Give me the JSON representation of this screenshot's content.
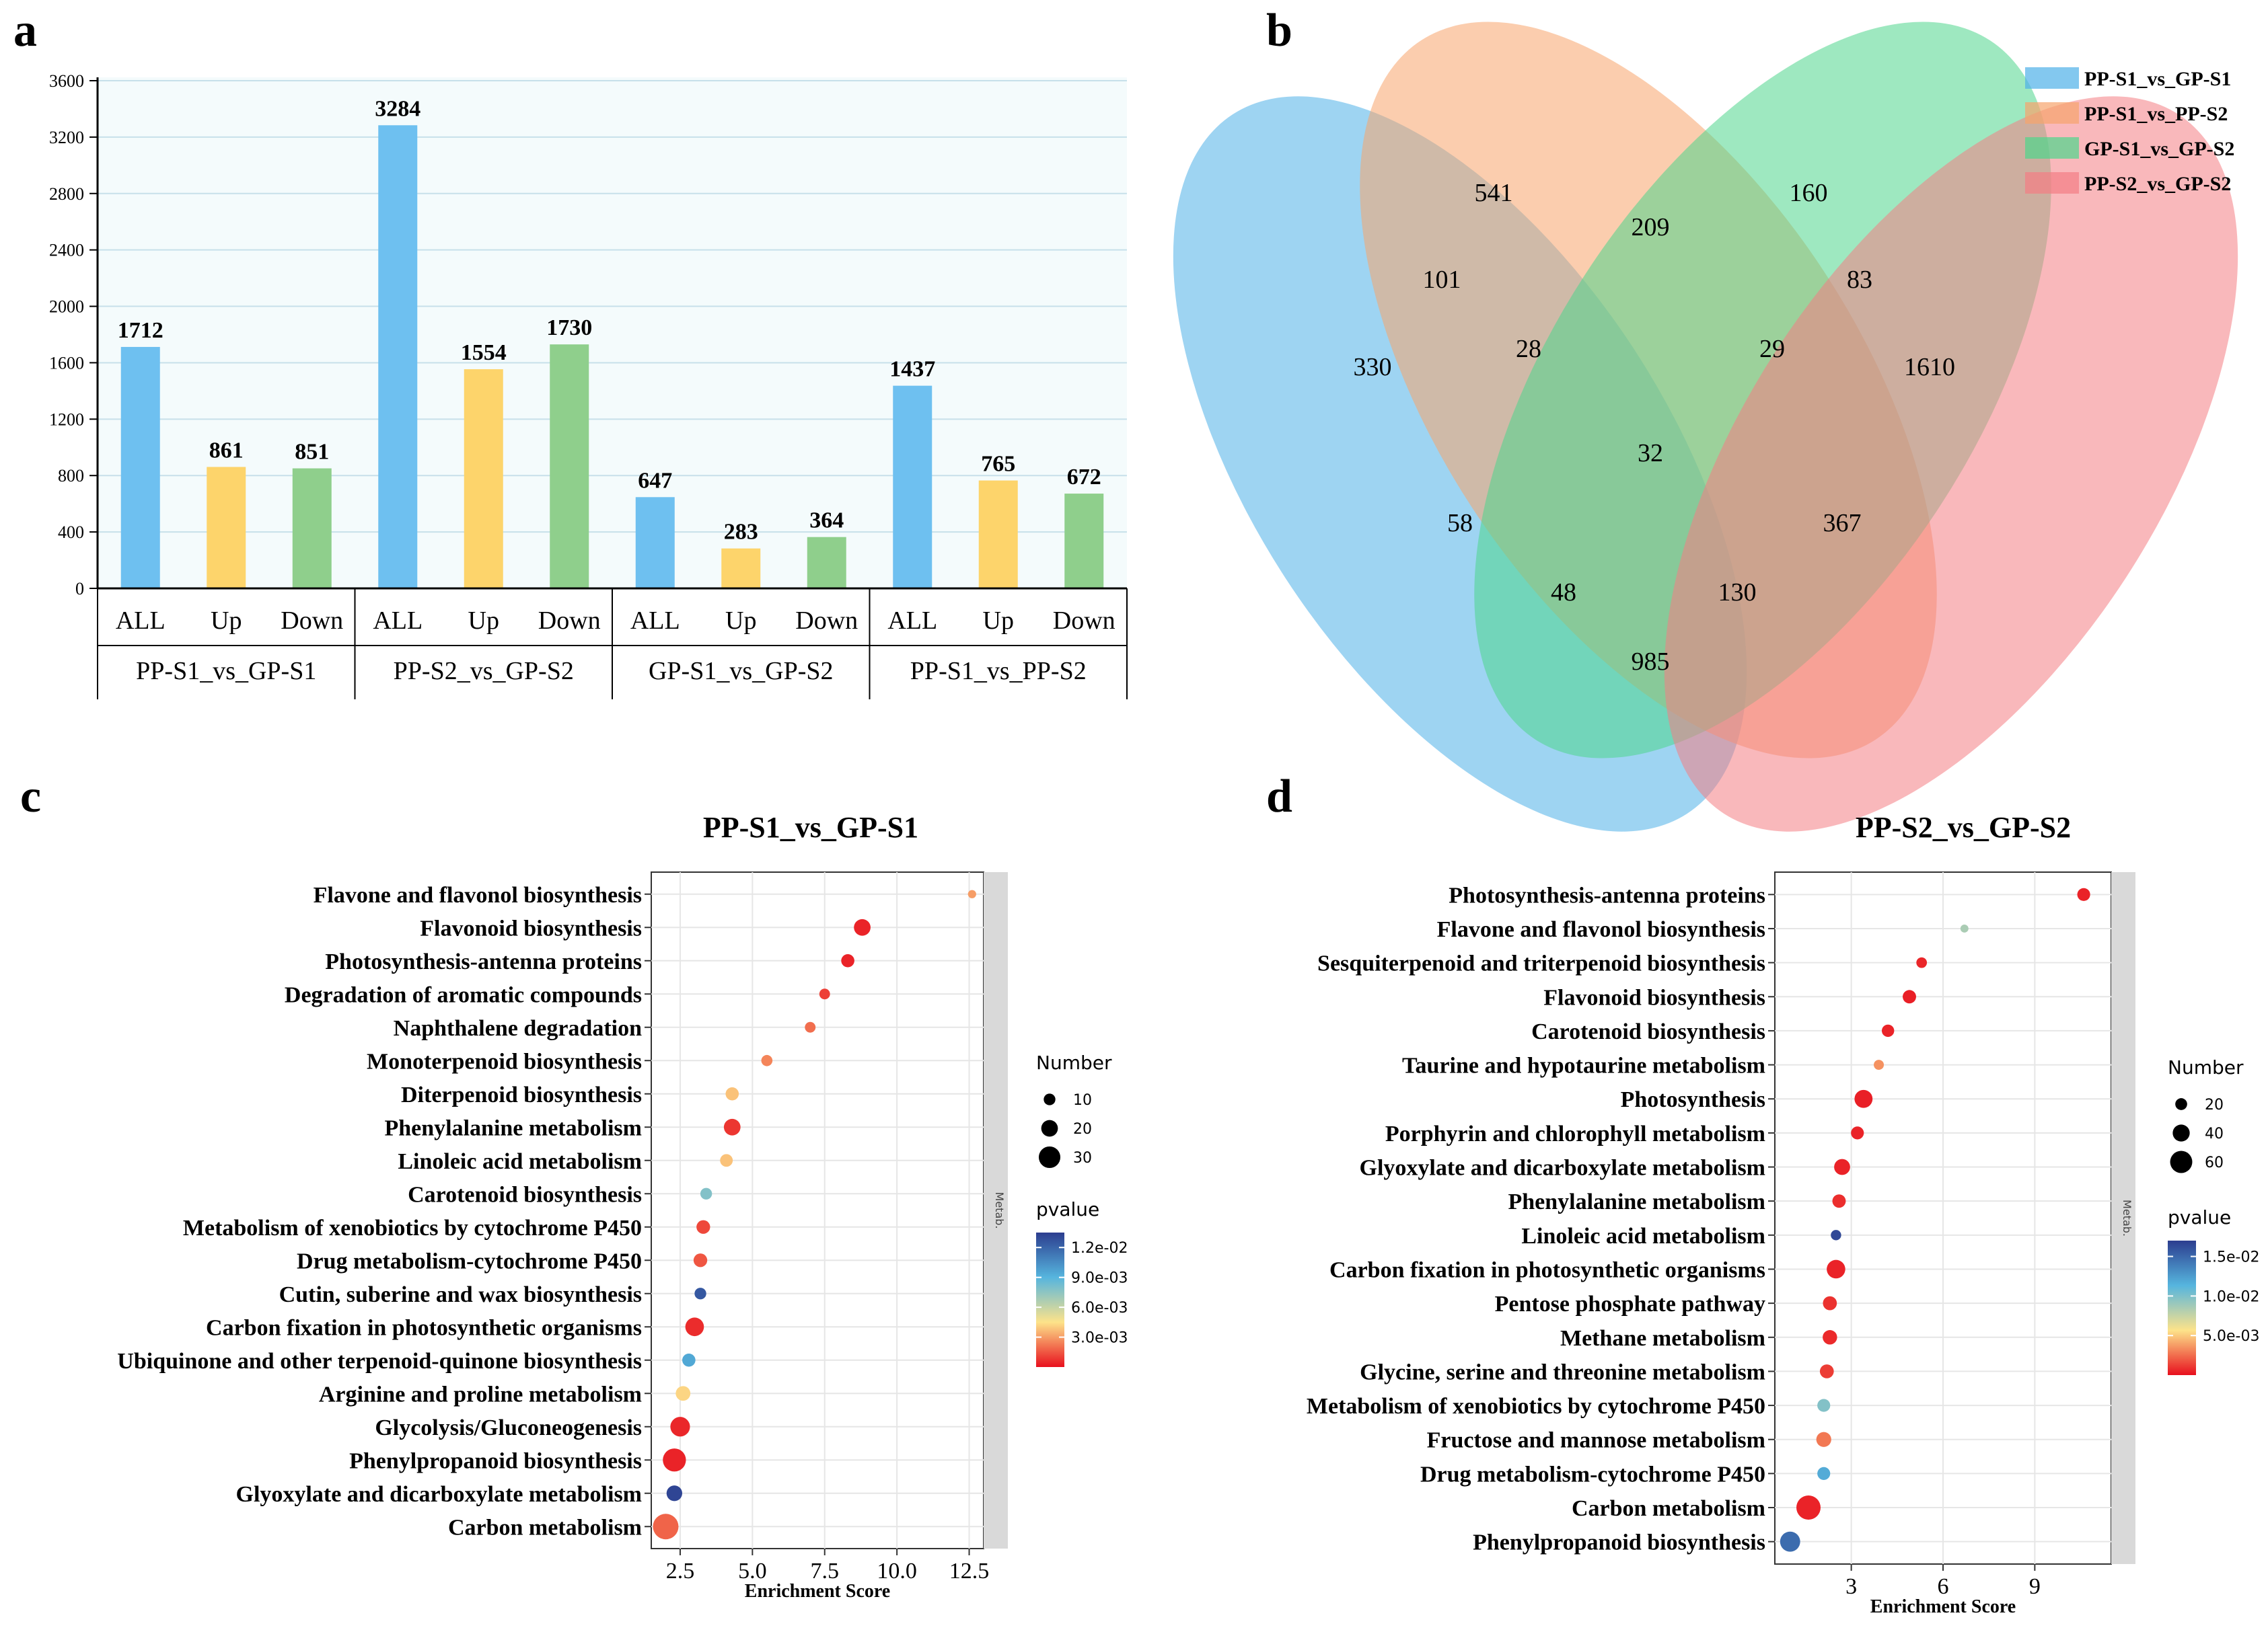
{
  "colors": {
    "all": "#6ec0f0",
    "up": "#fdd46b",
    "down": "#8fcf8c",
    "panel_bg": "#f4fbfc",
    "venn": [
      "#4fb1e8",
      "#f7a46c",
      "#4fd68c",
      "#f47e84"
    ],
    "pvalue_gradient": [
      "#e8101e",
      "#fde38a",
      "#56b5de",
      "#2c3d8f"
    ],
    "strip": "#d9d9d9"
  },
  "panel_letters": {
    "a": "a",
    "b": "b",
    "c": "c",
    "d": "d"
  },
  "chart_data": [
    {
      "panel": "a",
      "type": "bar",
      "ylim": [
        0,
        3600
      ],
      "yticks": [
        "0",
        "400",
        "800",
        "1200",
        "1600",
        "2000",
        "2400",
        "2800",
        "3200",
        "3600"
      ],
      "groups": [
        "PP-S1_vs_GP-S1",
        "PP-S2_vs_GP-S2",
        "GP-S1_vs_GP-S2",
        "PP-S1_vs_PP-S2"
      ],
      "sub_categories": [
        "ALL",
        "Up",
        "Down"
      ],
      "values": [
        [
          1712,
          861,
          851
        ],
        [
          3284,
          1554,
          1730
        ],
        [
          647,
          283,
          364
        ],
        [
          1437,
          765,
          672
        ]
      ],
      "labels": [
        [
          "1712",
          "861",
          "851"
        ],
        [
          "3284",
          "1554",
          "1730"
        ],
        [
          "647",
          "283",
          "364"
        ],
        [
          "1437",
          "765",
          "672"
        ]
      ]
    },
    {
      "panel": "b",
      "type": "venn",
      "sets": [
        "PP-S1_vs_GP-S1",
        "PP-S1_vs_PP-S2",
        "GP-S1_vs_GP-S2",
        "PP-S2_vs_GP-S2"
      ],
      "regions": {
        "A_only": "330",
        "B_only": "541",
        "C_only": "160",
        "D_only": "1610",
        "AB": "101",
        "BC": "209",
        "CD": "83",
        "AD": "985",
        "AC": "58",
        "BD": "367",
        "ABC": "28",
        "BCD": "29",
        "ACD": "48",
        "ABD": "130",
        "ABCD": "32"
      }
    },
    {
      "panel": "c",
      "type": "scatter",
      "title": "PP-S1_vs_GP-S1",
      "xlabel": "Enrichment Score",
      "xlim": [
        1.5,
        13.0
      ],
      "xticks": [
        2.5,
        5.0,
        7.5,
        10.0,
        12.5
      ],
      "xtick_labels": [
        "2.5",
        "5.0",
        "7.5",
        "10.0",
        "12.5"
      ],
      "strip_label": "Metab.",
      "size_legend": {
        "title": "Number",
        "values": [
          10,
          20,
          30
        ],
        "labels": [
          "10",
          "20",
          "30"
        ]
      },
      "color_legend": {
        "title": "pvalue",
        "min": 0.0,
        "max": 0.0135,
        "ticks": [
          0.012,
          0.009,
          0.006,
          0.003
        ],
        "labels": [
          "1.2e-02",
          "9.0e-03",
          "6.0e-03",
          "3.0e-03"
        ]
      },
      "points": [
        {
          "term": "Flavone and flavonol biosynthesis",
          "x": 12.6,
          "n": 3,
          "p": 0.003
        },
        {
          "term": "Flavonoid biosynthesis",
          "x": 8.8,
          "n": 20,
          "p": 0.0004
        },
        {
          "term": "Photosynthesis-antenna proteins",
          "x": 8.3,
          "n": 13,
          "p": 0.0004
        },
        {
          "term": "Degradation of aromatic compounds",
          "x": 7.5,
          "n": 8,
          "p": 0.001
        },
        {
          "term": "Naphthalene degradation",
          "x": 7.0,
          "n": 8,
          "p": 0.002
        },
        {
          "term": "Monoterpenoid biosynthesis",
          "x": 5.5,
          "n": 9,
          "p": 0.0025
        },
        {
          "term": "Diterpenoid biosynthesis",
          "x": 4.3,
          "n": 13,
          "p": 0.0038
        },
        {
          "term": "Phenylalanine metabolism",
          "x": 4.3,
          "n": 20,
          "p": 0.0008
        },
        {
          "term": "Linoleic acid metabolism",
          "x": 4.1,
          "n": 12,
          "p": 0.0038
        },
        {
          "term": "Carotenoid biosynthesis",
          "x": 3.4,
          "n": 10,
          "p": 0.0078
        },
        {
          "term": "Metabolism of xenobiotics by cytochrome P450",
          "x": 3.3,
          "n": 14,
          "p": 0.0012
        },
        {
          "term": "Drug metabolism-cytochrome P450",
          "x": 3.2,
          "n": 14,
          "p": 0.0015
        },
        {
          "term": "Cutin, suberine and wax biosynthesis",
          "x": 3.2,
          "n": 10,
          "p": 0.0125
        },
        {
          "term": "Carbon fixation in photosynthetic organisms",
          "x": 3.0,
          "n": 24,
          "p": 0.0006
        },
        {
          "term": "Ubiquinone and other terpenoid-quinone biosynthesis",
          "x": 2.8,
          "n": 13,
          "p": 0.0095
        },
        {
          "term": "Arginine and proline metabolism",
          "x": 2.6,
          "n": 16,
          "p": 0.0042
        },
        {
          "term": "Glycolysis/Gluconeogenesis",
          "x": 2.5,
          "n": 26,
          "p": 0.0005
        },
        {
          "term": "Phenylpropanoid biosynthesis",
          "x": 2.3,
          "n": 33,
          "p": 0.0004
        },
        {
          "term": "Glyoxylate and dicarboxylate metabolism",
          "x": 2.3,
          "n": 18,
          "p": 0.0132
        },
        {
          "term": "Carbon metabolism",
          "x": 2.0,
          "n": 38,
          "p": 0.0018
        }
      ]
    },
    {
      "panel": "d",
      "type": "scatter",
      "title": "PP-S2_vs_GP-S2",
      "xlabel": "Enrichment Score",
      "xlim": [
        0.5,
        11.5
      ],
      "xticks": [
        3,
        6,
        9
      ],
      "xtick_labels": [
        "3",
        "6",
        "9"
      ],
      "strip_label": "Metab.",
      "size_legend": {
        "title": "Number",
        "values": [
          20,
          40,
          60
        ],
        "labels": [
          "20",
          "40",
          "60"
        ]
      },
      "color_legend": {
        "title": "pvalue",
        "min": 0.0,
        "max": 0.017,
        "ticks": [
          0.015,
          0.01,
          0.005
        ],
        "labels": [
          "1.5e-02",
          "1.0e-02",
          "5.0e-03"
        ]
      },
      "points": [
        {
          "term": "Photosynthesis-antenna proteins",
          "x": 10.6,
          "n": 24,
          "p": 0.0005
        },
        {
          "term": "Flavone and flavonol biosynthesis",
          "x": 6.7,
          "n": 5,
          "p": 0.0085
        },
        {
          "term": "Sesquiterpenoid and triterpenoid biosynthesis",
          "x": 5.3,
          "n": 15,
          "p": 0.0006
        },
        {
          "term": "Flavonoid biosynthesis",
          "x": 4.9,
          "n": 26,
          "p": 0.0004
        },
        {
          "term": "Carotenoid biosynthesis",
          "x": 4.2,
          "n": 22,
          "p": 0.0005
        },
        {
          "term": "Taurine and hypotaurine metabolism",
          "x": 3.9,
          "n": 13,
          "p": 0.0035
        },
        {
          "term": "Photosynthesis",
          "x": 3.4,
          "n": 44,
          "p": 0.0004
        },
        {
          "term": "Porphyrin and chlorophyll metabolism",
          "x": 3.2,
          "n": 24,
          "p": 0.0005
        },
        {
          "term": "Glyoxylate and dicarboxylate metabolism",
          "x": 2.7,
          "n": 36,
          "p": 0.0005
        },
        {
          "term": "Phenylalanine metabolism",
          "x": 2.6,
          "n": 26,
          "p": 0.0008
        },
        {
          "term": "Linoleic acid metabolism",
          "x": 2.5,
          "n": 14,
          "p": 0.0165
        },
        {
          "term": "Carbon fixation in photosynthetic organisms",
          "x": 2.5,
          "n": 46,
          "p": 0.0005
        },
        {
          "term": "Pentose phosphate pathway",
          "x": 2.3,
          "n": 28,
          "p": 0.0009
        },
        {
          "term": "Methane metabolism",
          "x": 2.3,
          "n": 30,
          "p": 0.0007
        },
        {
          "term": "Glycine, serine and threonine metabolism",
          "x": 2.2,
          "n": 28,
          "p": 0.0012
        },
        {
          "term": "Metabolism of xenobiotics by cytochrome P450",
          "x": 2.1,
          "n": 24,
          "p": 0.0098
        },
        {
          "term": "Fructose and mannose metabolism",
          "x": 2.1,
          "n": 32,
          "p": 0.0028
        },
        {
          "term": "Drug metabolism-cytochrome P450",
          "x": 2.1,
          "n": 24,
          "p": 0.0118
        },
        {
          "term": "Carbon metabolism",
          "x": 1.6,
          "n": 68,
          "p": 0.0005
        },
        {
          "term": "Phenylpropanoid biosynthesis",
          "x": 1.0,
          "n": 52,
          "p": 0.0148
        }
      ]
    }
  ]
}
